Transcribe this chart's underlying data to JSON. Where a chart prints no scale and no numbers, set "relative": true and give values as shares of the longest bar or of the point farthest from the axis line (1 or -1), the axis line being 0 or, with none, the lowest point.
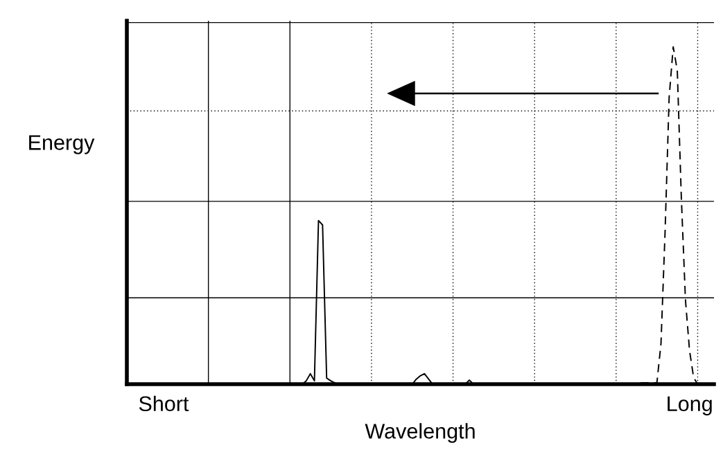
{
  "chart_data": {
    "type": "line",
    "relative": true,
    "xlabel": "Wavelength",
    "ylabel": "Energy",
    "categories": [
      null,
      null,
      null,
      null,
      null,
      null,
      null,
      null,
      null,
      "Short",
      null,
      null,
      null,
      null,
      null,
      null,
      null,
      null,
      null,
      null,
      null,
      null,
      null,
      null,
      null,
      null,
      null,
      null,
      null,
      null,
      null,
      null,
      null,
      null,
      null,
      null,
      null,
      null,
      null,
      null,
      null,
      null,
      null,
      null,
      null,
      null,
      null,
      null,
      null,
      null,
      null,
      null,
      null,
      null,
      null,
      null,
      null,
      null,
      null,
      null,
      null,
      null,
      null,
      null,
      null,
      null,
      null,
      null,
      null,
      null,
      null,
      null,
      null,
      null,
      null,
      null,
      null,
      null,
      null,
      null,
      null,
      null,
      null,
      null,
      null,
      null,
      null,
      null,
      null,
      null,
      null,
      null,
      null,
      null,
      null,
      null,
      null,
      null,
      null,
      null,
      null,
      null,
      null,
      null,
      null,
      null,
      null,
      null,
      null,
      null,
      null,
      null,
      null,
      null,
      null,
      null,
      null,
      null,
      null,
      null,
      null,
      null,
      null,
      null,
      null,
      null,
      null,
      null,
      null,
      null,
      null,
      null,
      null,
      null,
      null,
      null,
      null,
      null,
      "Long",
      null,
      null,
      null,
      null,
      null,
      null
    ],
    "grid": false,
    "marker": "none",
    "series": [
      {
        "color": "#000000",
        "line_style": "solid",
        "values": [
          0,
          0,
          0,
          0,
          0,
          0,
          0,
          0,
          0,
          0,
          0,
          0,
          0,
          0,
          0,
          0,
          0,
          0,
          0,
          0,
          0,
          0,
          0,
          0,
          0,
          0,
          0,
          0,
          0,
          0,
          0,
          0,
          0,
          0,
          0,
          0,
          0,
          0,
          0,
          0,
          0,
          0,
          0,
          0,
          0.01,
          0.031,
          0.01,
          0.485,
          0.472,
          0.018,
          0.01,
          0.004,
          0,
          0,
          0,
          0,
          0,
          0,
          0,
          0,
          0,
          0,
          0,
          0,
          0,
          0,
          0,
          0,
          0,
          0,
          0,
          0.015,
          0.025,
          0.031,
          0.015,
          0,
          0,
          0,
          0,
          0,
          0,
          0,
          0,
          0,
          0.012,
          0,
          0,
          0,
          0,
          0,
          0,
          0,
          0,
          0,
          0,
          0,
          0,
          0,
          0,
          0,
          0,
          0,
          0,
          0,
          0,
          0,
          0,
          0,
          0,
          0,
          0,
          0,
          0,
          0,
          0,
          0,
          0,
          0,
          0,
          0,
          0,
          0,
          0,
          0,
          0,
          0,
          0,
          0,
          0,
          0,
          0,
          0,
          0,
          0,
          0,
          0,
          0,
          0,
          0,
          0,
          0,
          0,
          0,
          0,
          0
        ]
      },
      {
        "color": "#000000",
        "line_style": "dashed",
        "values": [
          null,
          null,
          null,
          null,
          null,
          null,
          null,
          null,
          null,
          null,
          null,
          null,
          null,
          null,
          null,
          null,
          null,
          null,
          null,
          null,
          null,
          null,
          null,
          null,
          null,
          null,
          null,
          null,
          null,
          null,
          null,
          null,
          null,
          null,
          null,
          null,
          null,
          null,
          null,
          null,
          null,
          null,
          null,
          null,
          null,
          null,
          null,
          null,
          null,
          null,
          null,
          null,
          null,
          null,
          null,
          null,
          null,
          null,
          null,
          null,
          null,
          null,
          null,
          null,
          null,
          null,
          null,
          null,
          null,
          null,
          null,
          null,
          null,
          null,
          null,
          null,
          null,
          null,
          null,
          null,
          null,
          null,
          null,
          null,
          null,
          null,
          null,
          null,
          null,
          null,
          null,
          null,
          null,
          null,
          null,
          null,
          null,
          null,
          null,
          null,
          null,
          null,
          null,
          null,
          null,
          null,
          null,
          null,
          null,
          null,
          null,
          null,
          null,
          null,
          null,
          null,
          null,
          null,
          null,
          null,
          null,
          null,
          null,
          null,
          null,
          null,
          0.004,
          0.004,
          0.004,
          0.004,
          0.004,
          0.12,
          0.45,
          0.85,
          1.0,
          0.93,
          0.55,
          0.25,
          0.1,
          0.02,
          0,
          null,
          null,
          null,
          null
        ]
      }
    ],
    "ref_lines": [
      {
        "axis": "y",
        "value": 0.256,
        "color": "#000000",
        "line_style": "solid"
      },
      {
        "axis": "y",
        "value": 0.542,
        "color": "#000000",
        "line_style": "solid"
      },
      {
        "axis": "y",
        "value": 0.81,
        "color": "#000000",
        "line_style": "dotted"
      },
      {
        "axis": "y",
        "value": 1.072,
        "color": "#000000",
        "line_style": "solid"
      }
    ]
  }
}
